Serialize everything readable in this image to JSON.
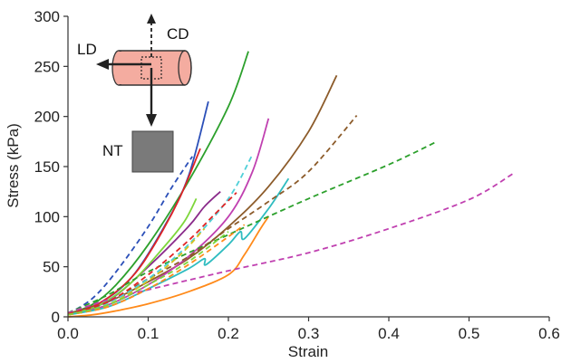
{
  "chart_data": {
    "type": "line",
    "title": "",
    "xlabel": "Strain",
    "ylabel": "Stress (kPa)",
    "xlim": [
      0,
      0.6
    ],
    "ylim": [
      0,
      300
    ],
    "x_ticks": [
      "0.0",
      "0.1",
      "0.2",
      "0.3",
      "0.4",
      "0.5",
      "0.6"
    ],
    "y_ticks": [
      "0",
      "50",
      "100",
      "150",
      "200",
      "250",
      "300"
    ],
    "grid": false,
    "legend": "none",
    "inset": {
      "labels": [
        "LD",
        "CD",
        "NT"
      ]
    },
    "series": [
      {
        "color": "#2ca02c",
        "dash": "solid",
        "points": [
          [
            0,
            3
          ],
          [
            0.03,
            12
          ],
          [
            0.06,
            32
          ],
          [
            0.1,
            72
          ],
          [
            0.15,
            135
          ],
          [
            0.2,
            210
          ],
          [
            0.225,
            265
          ]
        ]
      },
      {
        "color": "#2b4fb8",
        "dash": "solid",
        "points": [
          [
            0,
            2
          ],
          [
            0.04,
            14
          ],
          [
            0.08,
            40
          ],
          [
            0.12,
            90
          ],
          [
            0.15,
            140
          ],
          [
            0.175,
            215
          ]
        ]
      },
      {
        "color": "#8c5b2a",
        "dash": "solid",
        "points": [
          [
            0,
            3
          ],
          [
            0.05,
            15
          ],
          [
            0.1,
            35
          ],
          [
            0.15,
            58
          ],
          [
            0.2,
            90
          ],
          [
            0.25,
            130
          ],
          [
            0.3,
            185
          ],
          [
            0.335,
            241
          ]
        ]
      },
      {
        "color": "#c040b0",
        "dash": "solid",
        "points": [
          [
            0,
            2
          ],
          [
            0.05,
            12
          ],
          [
            0.1,
            32
          ],
          [
            0.15,
            60
          ],
          [
            0.2,
            100
          ],
          [
            0.23,
            145
          ],
          [
            0.25,
            198
          ]
        ]
      },
      {
        "color": "#e02525",
        "dash": "solid",
        "points": [
          [
            0,
            2
          ],
          [
            0.04,
            14
          ],
          [
            0.08,
            40
          ],
          [
            0.11,
            75
          ],
          [
            0.14,
            120
          ],
          [
            0.165,
            168
          ]
        ]
      },
      {
        "color": "#8a2a8a",
        "dash": "solid",
        "points": [
          [
            0,
            2
          ],
          [
            0.05,
            16
          ],
          [
            0.1,
            50
          ],
          [
            0.15,
            90
          ],
          [
            0.17,
            110
          ],
          [
            0.19,
            125
          ]
        ]
      },
      {
        "color": "#7dd63a",
        "dash": "solid",
        "points": [
          [
            0,
            2
          ],
          [
            0.04,
            12
          ],
          [
            0.08,
            35
          ],
          [
            0.12,
            70
          ],
          [
            0.145,
            95
          ],
          [
            0.16,
            118
          ]
        ]
      },
      {
        "color": "#2fbcc0",
        "dash": "solid",
        "points": [
          [
            0,
            2
          ],
          [
            0.05,
            10
          ],
          [
            0.1,
            28
          ],
          [
            0.15,
            48
          ],
          [
            0.17,
            58
          ],
          [
            0.172,
            52
          ],
          [
            0.2,
            72
          ],
          [
            0.215,
            85
          ],
          [
            0.22,
            78
          ],
          [
            0.25,
            108
          ],
          [
            0.275,
            138
          ]
        ]
      },
      {
        "color": "#ff8a1a",
        "dash": "solid",
        "points": [
          [
            0,
            0
          ],
          [
            0.03,
            2
          ],
          [
            0.06,
            6
          ],
          [
            0.1,
            13
          ],
          [
            0.15,
            25
          ],
          [
            0.2,
            42
          ],
          [
            0.22,
            62
          ],
          [
            0.24,
            88
          ],
          [
            0.25,
            100
          ]
        ]
      },
      {
        "color": "#2b4fb8",
        "dash": "dashed",
        "points": [
          [
            0,
            3
          ],
          [
            0.03,
            18
          ],
          [
            0.06,
            45
          ],
          [
            0.1,
            90
          ],
          [
            0.13,
            130
          ],
          [
            0.155,
            160
          ]
        ]
      },
      {
        "color": "#2ca02c",
        "dash": "dashed",
        "points": [
          [
            0,
            4
          ],
          [
            0.05,
            22
          ],
          [
            0.1,
            45
          ],
          [
            0.2,
            82
          ],
          [
            0.3,
            118
          ],
          [
            0.4,
            152
          ],
          [
            0.46,
            175
          ]
        ]
      },
      {
        "color": "#c040b0",
        "dash": "dashed",
        "points": [
          [
            0,
            4
          ],
          [
            0.05,
            17
          ],
          [
            0.1,
            27
          ],
          [
            0.2,
            46
          ],
          [
            0.3,
            64
          ],
          [
            0.4,
            88
          ],
          [
            0.5,
            117
          ],
          [
            0.555,
            143
          ]
        ]
      },
      {
        "color": "#8c5b2a",
        "dash": "dashed",
        "points": [
          [
            0,
            3
          ],
          [
            0.05,
            15
          ],
          [
            0.1,
            38
          ],
          [
            0.15,
            60
          ],
          [
            0.2,
            88
          ],
          [
            0.25,
            115
          ],
          [
            0.3,
            145
          ],
          [
            0.36,
            201
          ]
        ]
      },
      {
        "color": "#4fd0d8",
        "dash": "dashed",
        "points": [
          [
            0,
            3
          ],
          [
            0.05,
            14
          ],
          [
            0.1,
            38
          ],
          [
            0.15,
            72
          ],
          [
            0.2,
            118
          ],
          [
            0.23,
            162
          ]
        ]
      },
      {
        "color": "#e02525",
        "dash": "dashed",
        "points": [
          [
            0,
            3
          ],
          [
            0.05,
            15
          ],
          [
            0.1,
            42
          ],
          [
            0.15,
            76
          ],
          [
            0.18,
            100
          ],
          [
            0.21,
            124
          ]
        ]
      },
      {
        "color": "#d4c020",
        "dash": "dashed",
        "points": [
          [
            0,
            2
          ],
          [
            0.05,
            12
          ],
          [
            0.1,
            36
          ],
          [
            0.14,
            62
          ],
          [
            0.17,
            88
          ]
        ]
      },
      {
        "color": "#ff8a1a",
        "dash": "dashed",
        "points": [
          [
            0,
            2
          ],
          [
            0.05,
            10
          ],
          [
            0.1,
            28
          ],
          [
            0.15,
            52
          ],
          [
            0.2,
            80
          ],
          [
            0.22,
            92
          ]
        ]
      },
      {
        "color": "#7dd63a",
        "dash": "dashed",
        "points": [
          [
            0,
            2
          ],
          [
            0.05,
            12
          ],
          [
            0.1,
            32
          ],
          [
            0.15,
            55
          ],
          [
            0.2,
            85
          ]
        ]
      }
    ]
  }
}
